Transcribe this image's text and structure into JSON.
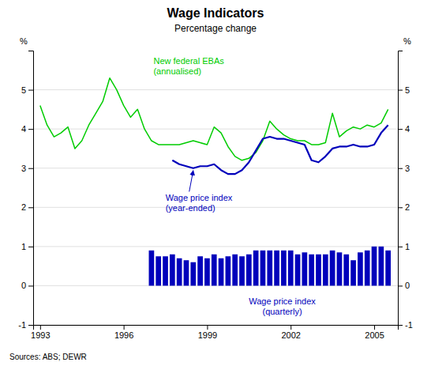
{
  "chart_data": {
    "type": "line",
    "title": "Wage Indicators",
    "subtitle": "Percentage change",
    "source": "Sources: ABS; DEWR",
    "ylabel": "%",
    "y2label": "%",
    "xlim": [
      1992.75,
      2005.85
    ],
    "xticks": [
      1993,
      1996,
      1999,
      2002,
      2005
    ],
    "ylim": [
      -1,
      6
    ],
    "yticks": [
      -1,
      0,
      1,
      2,
      3,
      4,
      5
    ],
    "y2lim": [
      -1,
      6
    ],
    "y2ticks": [
      -1,
      0,
      1,
      2,
      3,
      4,
      5
    ],
    "grid": true,
    "annotations": [
      "New federal EBAs",
      "(annualised)",
      "Wage price index",
      "(year-ended)",
      "Wage price index",
      "(quarterly)"
    ],
    "series": [
      {
        "type": "line",
        "color": "#00CC00",
        "x": [
          1993.0,
          1993.25,
          1993.5,
          1993.75,
          1994.0,
          1994.25,
          1994.5,
          1994.75,
          1995.0,
          1995.25,
          1995.5,
          1995.75,
          1996.0,
          1996.25,
          1996.5,
          1996.75,
          1997.0,
          1997.25,
          1997.5,
          1997.75,
          1998.0,
          1998.25,
          1998.5,
          1998.75,
          1999.0,
          1999.25,
          1999.5,
          1999.75,
          2000.0,
          2000.25,
          2000.5,
          2000.75,
          2001.0,
          2001.25,
          2001.5,
          2001.75,
          2002.0,
          2002.25,
          2002.5,
          2002.75,
          2003.0,
          2003.25,
          2003.5,
          2003.75,
          2004.0,
          2004.25,
          2004.5,
          2004.75,
          2005.0,
          2005.25,
          2005.5
        ],
        "values": [
          4.6,
          4.1,
          3.8,
          3.9,
          4.05,
          3.5,
          3.7,
          4.1,
          4.4,
          4.7,
          5.3,
          5.0,
          4.6,
          4.3,
          4.5,
          4.0,
          3.7,
          3.6,
          3.6,
          3.6,
          3.6,
          3.65,
          3.7,
          3.65,
          3.6,
          4.05,
          3.9,
          3.55,
          3.3,
          3.2,
          3.25,
          3.4,
          3.7,
          4.2,
          4.0,
          3.85,
          3.75,
          3.7,
          3.7,
          3.6,
          3.6,
          3.65,
          4.4,
          3.8,
          3.95,
          4.05,
          4.0,
          4.1,
          4.05,
          4.15,
          4.5
        ]
      },
      {
        "type": "line",
        "color": "#0000BB",
        "x": [
          1997.75,
          1998.0,
          1998.25,
          1998.5,
          1998.75,
          1999.0,
          1999.25,
          1999.5,
          1999.75,
          2000.0,
          2000.25,
          2000.5,
          2000.75,
          2001.0,
          2001.25,
          2001.5,
          2001.75,
          2002.0,
          2002.25,
          2002.5,
          2002.75,
          2003.0,
          2003.25,
          2003.5,
          2003.75,
          2004.0,
          2004.25,
          2004.5,
          2004.75,
          2005.0,
          2005.25,
          2005.5
        ],
        "values": [
          3.2,
          3.1,
          3.05,
          3.0,
          3.05,
          3.05,
          3.1,
          2.95,
          2.85,
          2.85,
          2.95,
          3.15,
          3.45,
          3.75,
          3.8,
          3.75,
          3.75,
          3.7,
          3.65,
          3.6,
          3.2,
          3.15,
          3.3,
          3.5,
          3.55,
          3.55,
          3.6,
          3.55,
          3.55,
          3.6,
          3.9,
          4.1
        ]
      },
      {
        "type": "bar",
        "color": "#0000BB",
        "x": [
          1997.0,
          1997.25,
          1997.5,
          1997.75,
          1998.0,
          1998.25,
          1998.5,
          1998.75,
          1999.0,
          1999.25,
          1999.5,
          1999.75,
          2000.0,
          2000.25,
          2000.5,
          2000.75,
          2001.0,
          2001.25,
          2001.5,
          2001.75,
          2002.0,
          2002.25,
          2002.5,
          2002.75,
          2003.0,
          2003.25,
          2003.5,
          2003.75,
          2004.0,
          2004.25,
          2004.5,
          2004.75,
          2005.0,
          2005.25,
          2005.5
        ],
        "values": [
          0.9,
          0.75,
          0.75,
          0.8,
          0.7,
          0.65,
          0.6,
          0.75,
          0.7,
          0.8,
          0.7,
          0.75,
          0.8,
          0.75,
          0.8,
          0.9,
          0.9,
          0.9,
          0.9,
          0.9,
          0.9,
          0.8,
          0.85,
          0.8,
          0.8,
          0.8,
          0.9,
          0.85,
          0.8,
          0.65,
          0.85,
          0.9,
          1.0,
          1.0,
          0.9
        ]
      }
    ]
  }
}
